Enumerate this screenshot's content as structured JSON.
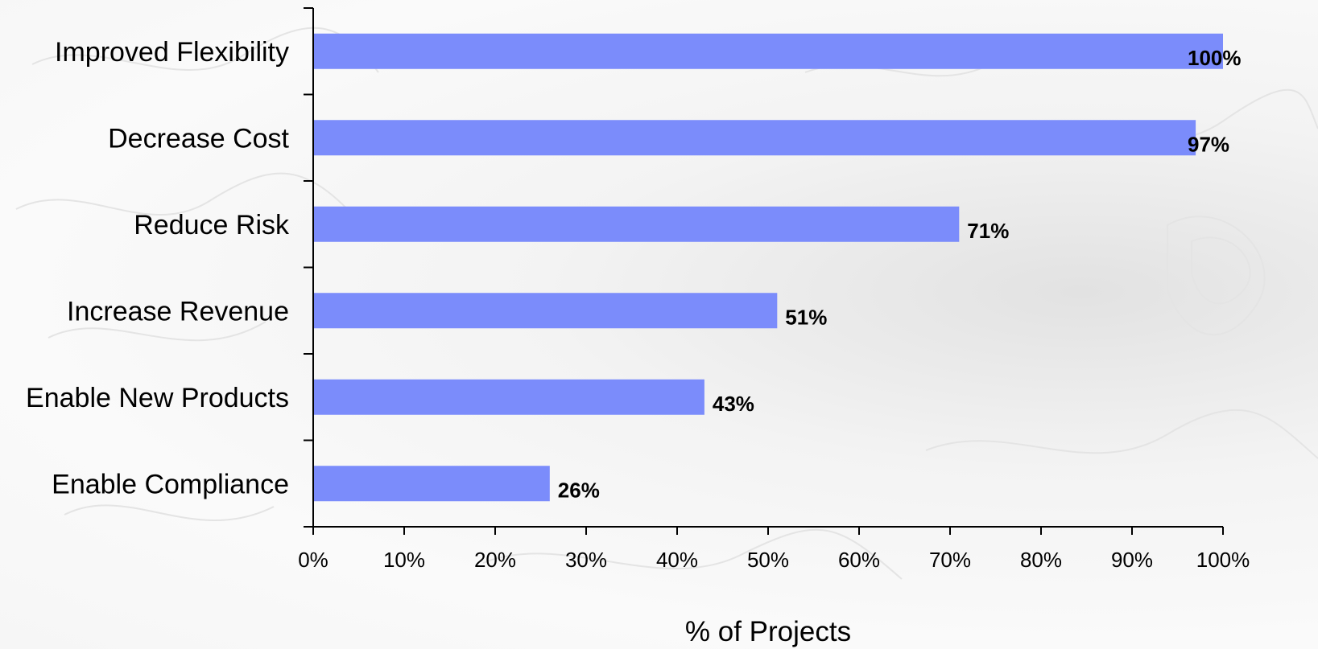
{
  "chart_data": {
    "type": "bar",
    "orientation": "horizontal",
    "categories": [
      "Improved Flexibility",
      "Decrease Cost",
      "Reduce Risk",
      "Increase Revenue",
      "Enable New Products",
      "Enable Compliance"
    ],
    "values": [
      100,
      97,
      71,
      51,
      43,
      26
    ],
    "value_labels": [
      "100%",
      "97%",
      "71%",
      "51%",
      "43%",
      "26%"
    ],
    "xlabel": "% of Projects",
    "ylabel": "",
    "xlim": [
      0,
      100
    ],
    "x_ticks": [
      "0%",
      "10%",
      "20%",
      "30%",
      "40%",
      "50%",
      "60%",
      "70%",
      "80%",
      "90%",
      "100%"
    ],
    "grid": false,
    "legend": "none",
    "bar_color": "#7b8cfb"
  }
}
